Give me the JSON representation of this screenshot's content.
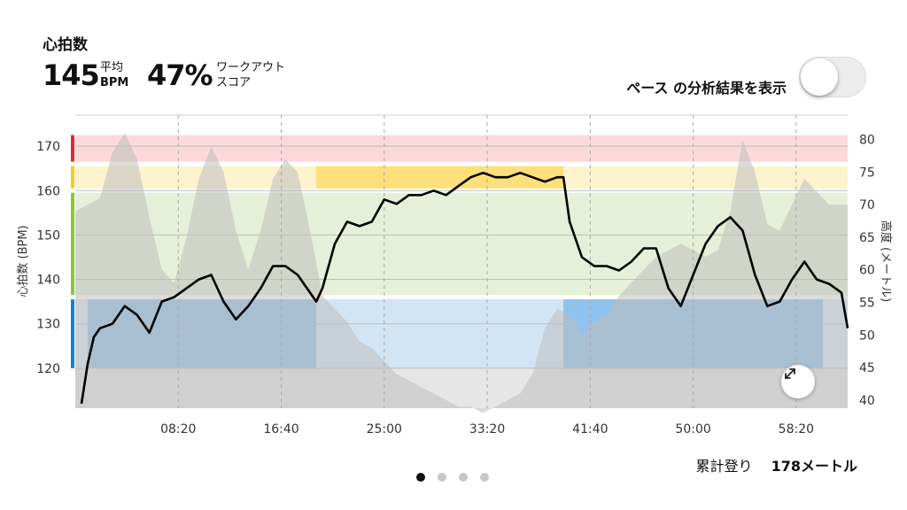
{
  "header": {
    "title": "心拍数",
    "avg_value": "145",
    "avg_label": "平均",
    "avg_unit": "BPM",
    "score_value": "47%",
    "score_label_1": "ワークアウト",
    "score_label_2": "スコア"
  },
  "pace_toggle": {
    "label": "ペース の分析結果を表示",
    "state": "off"
  },
  "summary": {
    "label": "累計登り",
    "value": "178メートル"
  },
  "pagination": {
    "count": 4,
    "active_index": 0
  },
  "icons": {
    "expand": "expand-arrows-icon"
  },
  "colors": {
    "zone_red": "#e8262b",
    "zone_yellow": "#f6cd23",
    "zone_green": "#8cc63f",
    "zone_blue": "#1e7fc7",
    "hr_line": "#000000",
    "elevation": "#bdbdbd"
  },
  "chart_data": {
    "type": "line",
    "x_unit": "min",
    "xlabel": "",
    "ylabel": "心拍数 (BPM)",
    "ylabel_right": "高度 (メートル)",
    "x_ticks": [
      "08:20",
      "16:40",
      "25:00",
      "33:20",
      "41:40",
      "50:00",
      "58:20"
    ],
    "x_tick_values": [
      8.333,
      16.667,
      25,
      33.333,
      41.667,
      50,
      58.333
    ],
    "xlim": [
      0,
      62.5
    ],
    "ylim": [
      111,
      177
    ],
    "y_ticks": [
      120,
      130,
      140,
      150,
      160,
      170
    ],
    "ylim_right": [
      38.75,
      83.75
    ],
    "y_ticks_right": [
      40,
      45,
      50,
      55,
      60,
      65,
      70,
      75,
      80
    ],
    "zones": [
      {
        "name": "red",
        "from": 166.5,
        "to": 172.5
      },
      {
        "name": "yellow",
        "from": 160.5,
        "to": 165.5
      },
      {
        "name": "green",
        "from": 136.5,
        "to": 159.5
      },
      {
        "name": "blue",
        "from": 120,
        "to": 135.5
      }
    ],
    "zone_highlights": [
      {
        "zone": "blue",
        "x_from": 1,
        "x_to": 19.5,
        "style": "strong"
      },
      {
        "zone": "blue",
        "x_from": 19.5,
        "x_to": 39.5,
        "style": "light"
      },
      {
        "zone": "yellow",
        "x_from": 19.5,
        "x_to": 39.5,
        "style": "strong"
      },
      {
        "zone": "blue",
        "x_from": 39.5,
        "x_to": 60.5,
        "style": "strong"
      }
    ],
    "series": [
      {
        "id": "heart_rate",
        "axis": "left",
        "x": [
          0.5,
          1,
          1.5,
          2,
          3,
          4,
          5,
          6,
          7,
          8,
          9,
          10,
          11,
          12,
          13,
          14,
          15,
          16,
          17,
          18,
          19,
          19.5,
          20,
          21,
          22,
          23,
          24,
          25,
          26,
          27,
          28,
          29,
          30,
          31,
          32,
          33,
          34,
          35,
          36,
          37,
          38,
          39,
          39.5,
          40,
          41,
          42,
          43,
          44,
          45,
          46,
          47,
          48,
          49,
          50,
          51,
          52,
          53,
          54,
          55,
          56,
          57,
          58,
          59,
          60,
          61,
          62,
          62.5
        ],
        "y": [
          112,
          121,
          127,
          129,
          130,
          134,
          132,
          128,
          135,
          136,
          138,
          140,
          141,
          135,
          131,
          134,
          138,
          143,
          143,
          141,
          137,
          135,
          138,
          148,
          153,
          152,
          153,
          158,
          157,
          159,
          159,
          160,
          159,
          161,
          163,
          164,
          163,
          163,
          164,
          163,
          162,
          163,
          163,
          153,
          145,
          143,
          143,
          142,
          144,
          147,
          147,
          138,
          134,
          141,
          148,
          152,
          154,
          151,
          141,
          134,
          135,
          140,
          144,
          140,
          139,
          137,
          129
        ]
      },
      {
        "id": "elevation",
        "axis": "right",
        "x": [
          0,
          1,
          2,
          3,
          4,
          5,
          6,
          7,
          8,
          9,
          10,
          11,
          12,
          13,
          14,
          15,
          16,
          17,
          18,
          19,
          20,
          21,
          22,
          23,
          24,
          25,
          26,
          27,
          28,
          29,
          30,
          31,
          32,
          33,
          34,
          35,
          36,
          37,
          38,
          39,
          40,
          41,
          42,
          43,
          44,
          45,
          46,
          47,
          48,
          49,
          50,
          51,
          52,
          53,
          54,
          55,
          56,
          57,
          58,
          59,
          60,
          61,
          62,
          62.5
        ],
        "y": [
          69,
          70,
          71,
          78,
          81,
          77,
          68,
          60,
          58,
          65,
          74,
          79,
          75,
          66,
          60,
          66,
          74,
          77,
          75,
          66,
          56,
          54,
          52,
          49,
          48,
          46,
          44,
          43,
          42,
          41,
          40,
          39,
          39,
          38,
          39,
          40,
          41,
          44,
          51,
          54,
          53,
          50,
          52,
          53,
          56,
          58,
          60,
          62,
          63,
          64,
          63,
          62,
          63,
          69,
          80,
          75,
          67,
          66,
          70,
          74,
          72,
          70,
          70,
          70
        ]
      }
    ]
  }
}
